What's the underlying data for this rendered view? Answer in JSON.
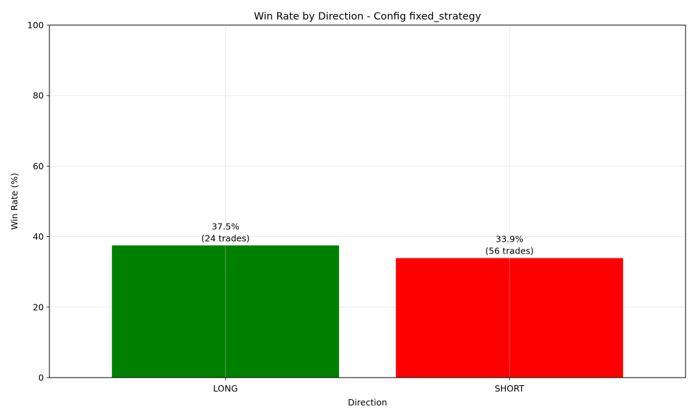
{
  "chart_data": {
    "type": "bar",
    "title": "Win Rate by Direction - Config fixed_strategy",
    "xlabel": "Direction",
    "ylabel": "Win Rate (%)",
    "ylim": [
      0,
      100
    ],
    "yticks": [
      0,
      20,
      40,
      60,
      80,
      100
    ],
    "grid": true,
    "categories": [
      "LONG",
      "SHORT"
    ],
    "values": [
      37.5,
      33.9
    ],
    "colors": [
      "#008000",
      "#ff0000"
    ],
    "bar_labels": [
      [
        "37.5%",
        "(24 trades)"
      ],
      [
        "33.9%",
        "(56 trades)"
      ]
    ]
  }
}
